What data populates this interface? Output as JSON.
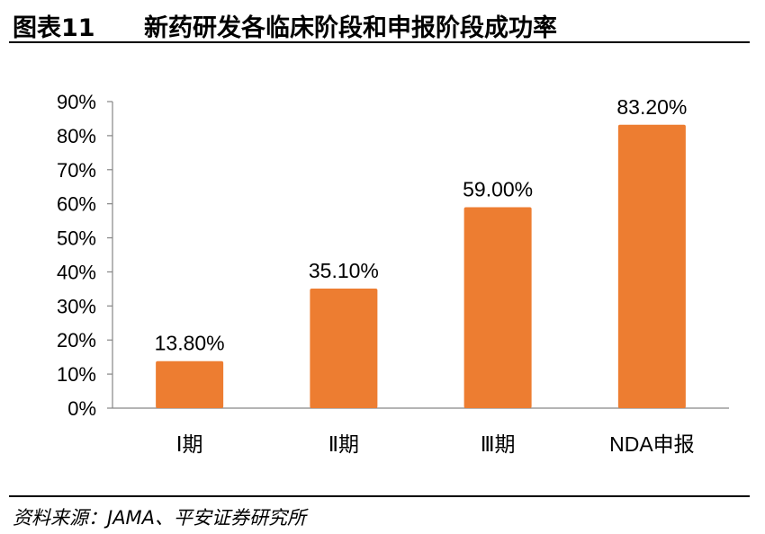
{
  "header": {
    "figure_number": "图表11",
    "title": "新药研发各临床阶段和申报阶段成功率"
  },
  "chart_data": {
    "type": "bar",
    "categories": [
      "Ⅰ期",
      "Ⅱ期",
      "Ⅲ期",
      "NDA申报"
    ],
    "values": [
      13.8,
      35.1,
      59.0,
      83.2
    ],
    "data_labels": [
      "13.80%",
      "35.10%",
      "59.00%",
      "83.20%"
    ],
    "ylim": [
      0,
      90
    ],
    "yticks": [
      0,
      10,
      20,
      30,
      40,
      50,
      60,
      70,
      80,
      90
    ],
    "ytick_labels": [
      "0%",
      "10%",
      "20%",
      "30%",
      "40%",
      "50%",
      "60%",
      "70%",
      "80%",
      "90%"
    ],
    "grid": false,
    "legend": false,
    "bar_color": "#ED7D31",
    "title": "",
    "xlabel": "",
    "ylabel": ""
  },
  "footer": {
    "source": "资料来源：JAMA、平安证券研究所"
  }
}
